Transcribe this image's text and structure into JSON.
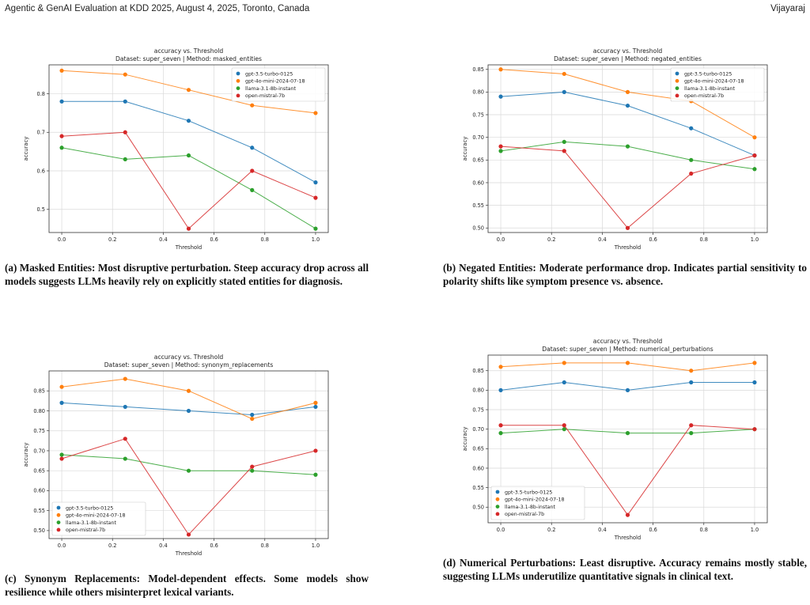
{
  "header": {
    "left": "Agentic & GenAI Evaluation at KDD 2025, August 4, 2025, Toronto, Canada",
    "right": "Vijayaraj"
  },
  "colors": {
    "gpt-3.5-turbo-0125": "#1f77b4",
    "gpt-4o-mini-2024-07-18": "#ff7f0e",
    "llama-3.1-8b-instant": "#2ca02c",
    "open-mistral-7b": "#d62728"
  },
  "chart_data": [
    {
      "type": "line",
      "title": "accuracy vs. Threshold",
      "subtitle": "Dataset: super_seven | Method: masked_entities",
      "xlabel": "Threshold",
      "ylabel": "accuracy",
      "xlim": [
        -0.05,
        1.05
      ],
      "ylim": [
        0.44,
        0.875
      ],
      "xticks": [
        "0.0",
        "0.2",
        "0.4",
        "0.6",
        "0.8",
        "1.0"
      ],
      "yticks": [
        "0.5",
        "0.6",
        "0.7",
        "0.8"
      ],
      "grid": true,
      "legend": "top-right",
      "x": [
        0.0,
        0.25,
        0.5,
        0.75,
        1.0
      ],
      "series": [
        {
          "name": "gpt-3.5-turbo-0125",
          "values": [
            0.78,
            0.78,
            0.73,
            0.66,
            0.57
          ]
        },
        {
          "name": "gpt-4o-mini-2024-07-18",
          "values": [
            0.86,
            0.85,
            0.81,
            0.77,
            0.75
          ]
        },
        {
          "name": "llama-3.1-8b-instant",
          "values": [
            0.66,
            0.63,
            0.64,
            0.55,
            0.45
          ]
        },
        {
          "name": "open-mistral-7b",
          "values": [
            0.69,
            0.7,
            0.45,
            0.6,
            0.53
          ]
        }
      ]
    },
    {
      "type": "line",
      "title": "accuracy vs. Threshold",
      "subtitle": "Dataset: super_seven | Method: negated_entities",
      "xlabel": "Threshold",
      "ylabel": "accuracy",
      "xlim": [
        -0.05,
        1.05
      ],
      "ylim": [
        0.49,
        0.86
      ],
      "xticks": [
        "0.0",
        "0.2",
        "0.4",
        "0.6",
        "0.8",
        "1.0"
      ],
      "yticks": [
        "0.50",
        "0.55",
        "0.60",
        "0.65",
        "0.70",
        "0.75",
        "0.80",
        "0.85"
      ],
      "grid": true,
      "legend": "top-right",
      "x": [
        0.0,
        0.25,
        0.5,
        0.75,
        1.0
      ],
      "series": [
        {
          "name": "gpt-3.5-turbo-0125",
          "values": [
            0.79,
            0.8,
            0.77,
            0.72,
            0.66
          ]
        },
        {
          "name": "gpt-4o-mini-2024-07-18",
          "values": [
            0.85,
            0.84,
            0.8,
            0.78,
            0.7
          ]
        },
        {
          "name": "llama-3.1-8b-instant",
          "values": [
            0.67,
            0.69,
            0.68,
            0.65,
            0.63
          ]
        },
        {
          "name": "open-mistral-7b",
          "values": [
            0.68,
            0.67,
            0.5,
            0.62,
            0.66
          ]
        }
      ]
    },
    {
      "type": "line",
      "title": "accuracy vs. Threshold",
      "subtitle": "Dataset: super_seven | Method: synonym_replacements",
      "xlabel": "Threshold",
      "ylabel": "accuracy",
      "xlim": [
        -0.05,
        1.05
      ],
      "ylim": [
        0.48,
        0.9
      ],
      "xticks": [
        "0.0",
        "0.2",
        "0.4",
        "0.6",
        "0.8",
        "1.0"
      ],
      "yticks": [
        "0.50",
        "0.55",
        "0.60",
        "0.65",
        "0.70",
        "0.75",
        "0.80",
        "0.85"
      ],
      "grid": true,
      "legend": "bottom-left",
      "x": [
        0.0,
        0.25,
        0.5,
        0.75,
        1.0
      ],
      "series": [
        {
          "name": "gpt-3.5-turbo-0125",
          "values": [
            0.82,
            0.81,
            0.8,
            0.79,
            0.81
          ]
        },
        {
          "name": "gpt-4o-mini-2024-07-18",
          "values": [
            0.86,
            0.88,
            0.85,
            0.78,
            0.82
          ]
        },
        {
          "name": "llama-3.1-8b-instant",
          "values": [
            0.69,
            0.68,
            0.65,
            0.65,
            0.64
          ]
        },
        {
          "name": "open-mistral-7b",
          "values": [
            0.68,
            0.73,
            0.49,
            0.66,
            0.7
          ]
        }
      ]
    },
    {
      "type": "line",
      "title": "accuracy vs. Threshold",
      "subtitle": "Dataset: super_seven | Method: numerical_perturbations",
      "xlabel": "Threshold",
      "ylabel": "accuracy",
      "xlim": [
        -0.05,
        1.05
      ],
      "ylim": [
        0.46,
        0.89
      ],
      "xticks": [
        "0.0",
        "0.2",
        "0.4",
        "0.6",
        "0.8",
        "1.0"
      ],
      "yticks": [
        "0.50",
        "0.55",
        "0.60",
        "0.65",
        "0.70",
        "0.75",
        "0.80",
        "0.85"
      ],
      "grid": true,
      "legend": "bottom-left",
      "x": [
        0.0,
        0.25,
        0.5,
        0.75,
        1.0
      ],
      "series": [
        {
          "name": "gpt-3.5-turbo-0125",
          "values": [
            0.8,
            0.82,
            0.8,
            0.82,
            0.82
          ]
        },
        {
          "name": "gpt-4o-mini-2024-07-18",
          "values": [
            0.86,
            0.87,
            0.87,
            0.85,
            0.87
          ]
        },
        {
          "name": "llama-3.1-8b-instant",
          "values": [
            0.69,
            0.7,
            0.69,
            0.69,
            0.7
          ]
        },
        {
          "name": "open-mistral-7b",
          "values": [
            0.71,
            0.71,
            0.48,
            0.71,
            0.7
          ]
        }
      ]
    }
  ],
  "captions": [
    {
      "label": "(a) Masked Entities:",
      "text": "Most disruptive perturbation. Steep accuracy drop across all models suggests LLMs heavily rely on explicitly stated entities for diagnosis."
    },
    {
      "label": "(b) Negated Entities:",
      "text": "Moderate performance drop. Indicates partial sensitivity to polarity shifts like symptom presence vs. absence."
    },
    {
      "label": "(c) Synonym Replacements:",
      "text": "Model-dependent effects. Some models show resilience while others misinterpret lexical variants."
    },
    {
      "label": "(d) Numerical Perturbations:",
      "text": "Least disruptive. Accuracy remains mostly stable, suggesting LLMs underutilize quantitative signals in clinical text."
    }
  ]
}
